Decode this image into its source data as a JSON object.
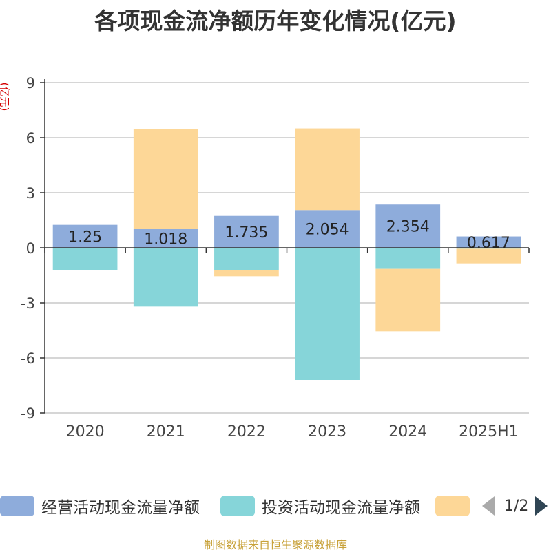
{
  "title": "各项现金流净额历年变化情况(亿元)",
  "y_unit": "(亿元)",
  "source": "制图数据来自恒生聚源数据库",
  "legend_page": "1/2",
  "colors": {
    "operating": "#8eacdb",
    "investing": "#86d5d9",
    "financing": "#fdd797",
    "axis": "#333333",
    "grid": "#c8c8c8"
  },
  "chart_data": {
    "type": "bar",
    "stacked": true,
    "categories": [
      "2020",
      "2021",
      "2022",
      "2023",
      "2024",
      "2025H1"
    ],
    "ylim": [
      -9,
      9
    ],
    "yticks": [
      9,
      6,
      3,
      0,
      -3,
      -6,
      -9
    ],
    "grid": true,
    "legend_position": "bottom",
    "series": [
      {
        "name": "经营活动现金流量净额",
        "key": "operating",
        "values": [
          1.25,
          1.018,
          1.735,
          2.054,
          2.354,
          0.617
        ],
        "labels": [
          "1.25",
          "1.018",
          "1.735",
          "2.054",
          "2.354",
          "0.617"
        ]
      },
      {
        "name": "投资活动现金流量净额",
        "key": "investing",
        "values": [
          -1.2,
          -3.2,
          -1.2,
          -7.2,
          -1.15,
          -0.05
        ]
      },
      {
        "name": "",
        "key": "financing",
        "values": [
          0,
          5.45,
          -0.35,
          4.45,
          -3.4,
          -0.8
        ]
      }
    ]
  }
}
